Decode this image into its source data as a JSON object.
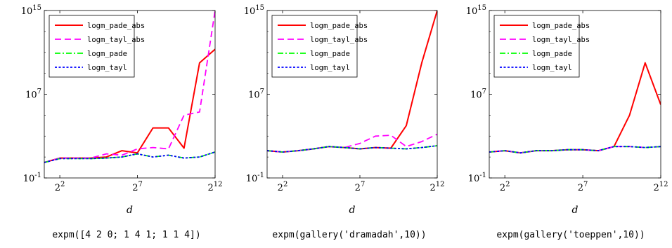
{
  "chart_data": [
    {
      "type": "line",
      "title": "expm([4 2 0; 1 4 1; 1 1 4])",
      "xlabel": "d",
      "x_scale": "log2",
      "y_scale": "log10",
      "xlim": [
        2,
        4096
      ],
      "ylim": [
        0.1,
        1000000000000000.0
      ],
      "x_ticks": [
        "2^2",
        "2^7",
        "2^12"
      ],
      "y_ticks": [
        "10^-1",
        "10^7",
        "10^15"
      ],
      "legend_position": "top-left",
      "x": [
        2,
        4,
        8,
        16,
        32,
        64,
        128,
        256,
        512,
        1024,
        2048,
        4096
      ],
      "series": [
        {
          "name": "logm_pade_abs",
          "color": "#ff0000",
          "dash": "solid",
          "values": [
            3,
            8,
            8,
            8,
            10,
            40,
            25,
            6000.0,
            6000.0,
            70,
            10000000000.0,
            200000000000.0
          ]
        },
        {
          "name": "logm_tayl_abs",
          "color": "#ff00ff",
          "dash": "dashed",
          "values": [
            3,
            8,
            8,
            8,
            20,
            15,
            60,
            80,
            60,
            100000.0,
            200000.0,
            1000000000000000.0
          ]
        },
        {
          "name": "logm_pade",
          "color": "#00ff00",
          "dash": "dashdot",
          "values": [
            3,
            7,
            7,
            7,
            8,
            10,
            20,
            10,
            15,
            8,
            10,
            30
          ]
        },
        {
          "name": "logm_tayl",
          "color": "#0000ff",
          "dash": "dotted",
          "values": [
            3,
            7,
            7,
            7,
            8,
            10,
            20,
            10,
            15,
            8,
            10,
            30
          ]
        }
      ]
    },
    {
      "type": "line",
      "title": "expm(gallery('dramadah',10))",
      "xlabel": "d",
      "x_scale": "log2",
      "y_scale": "log10",
      "xlim": [
        2,
        4096
      ],
      "ylim": [
        0.1,
        1000000000000000.0
      ],
      "x_ticks": [
        "2^2",
        "2^7",
        "2^12"
      ],
      "y_ticks": [
        "10^-1",
        "10^7",
        "10^15"
      ],
      "legend_position": "top-left",
      "x": [
        2,
        4,
        8,
        16,
        32,
        64,
        128,
        256,
        512,
        1024,
        2048,
        4096
      ],
      "series": [
        {
          "name": "logm_pade_abs",
          "color": "#ff0000",
          "dash": "solid",
          "values": [
            40,
            30,
            40,
            60,
            100,
            80,
            60,
            80,
            70,
            10000.0,
            10000000000.0,
            1000000000000000.0
          ]
        },
        {
          "name": "logm_tayl_abs",
          "color": "#ff00ff",
          "dash": "dashed",
          "values": [
            40,
            30,
            40,
            60,
            100,
            80,
            200,
            1000.0,
            1200.0,
            100,
            300,
            1500.0
          ]
        },
        {
          "name": "logm_pade",
          "color": "#00ff00",
          "dash": "dashdot",
          "values": [
            40,
            30,
            40,
            60,
            100,
            80,
            60,
            80,
            70,
            60,
            80,
            120
          ]
        },
        {
          "name": "logm_tayl",
          "color": "#0000ff",
          "dash": "dotted",
          "values": [
            40,
            30,
            40,
            60,
            100,
            80,
            60,
            80,
            70,
            60,
            80,
            120
          ]
        }
      ]
    },
    {
      "type": "line",
      "title": "expm(gallery('toeppen',10))",
      "xlabel": "d",
      "x_scale": "log2",
      "y_scale": "log10",
      "xlim": [
        2,
        4096
      ],
      "ylim": [
        0.1,
        1000000000000000.0
      ],
      "x_ticks": [
        "2^2",
        "2^7",
        "2^12"
      ],
      "y_ticks": [
        "10^-1",
        "10^7",
        "10^15"
      ],
      "legend_position": "top-left",
      "x": [
        2,
        4,
        8,
        16,
        32,
        64,
        128,
        256,
        512,
        1024,
        2048,
        4096
      ],
      "series": [
        {
          "name": "logm_pade_abs",
          "color": "#ff0000",
          "dash": "solid",
          "values": [
            30,
            40,
            25,
            40,
            40,
            50,
            50,
            40,
            100,
            100000.0,
            10000000000.0,
            1000000.0
          ]
        },
        {
          "name": "logm_tayl_abs",
          "color": "#ff00ff",
          "dash": "dashed",
          "values": [
            30,
            40,
            25,
            40,
            40,
            50,
            50,
            40,
            100,
            100,
            80,
            100
          ]
        },
        {
          "name": "logm_pade",
          "color": "#00ff00",
          "dash": "dashdot",
          "values": [
            30,
            40,
            25,
            40,
            40,
            50,
            50,
            40,
            100,
            100,
            80,
            100
          ]
        },
        {
          "name": "logm_tayl",
          "color": "#0000ff",
          "dash": "dotted",
          "values": [
            30,
            40,
            25,
            40,
            40,
            50,
            50,
            40,
            100,
            100,
            80,
            100
          ]
        }
      ]
    }
  ]
}
